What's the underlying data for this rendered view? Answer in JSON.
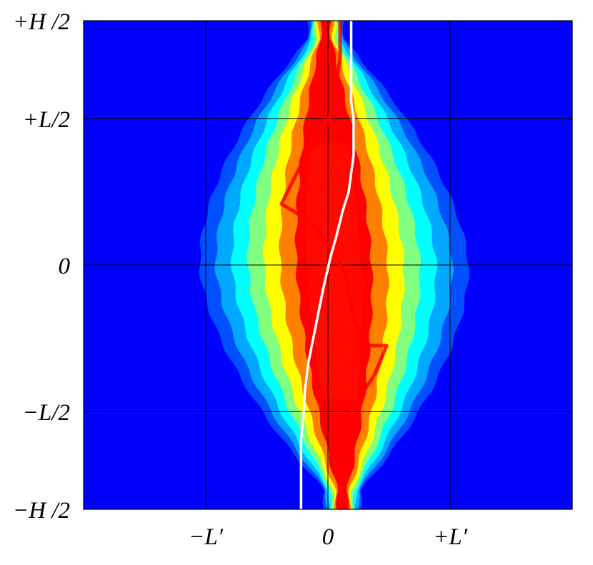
{
  "chart_data": {
    "type": "heatmap",
    "title": "",
    "xlabel": "",
    "ylabel": "",
    "colormap": [
      "#0000ff",
      "#0050ff",
      "#00a8ff",
      "#00ffff",
      "#80ff80",
      "#ffff00",
      "#ff8000",
      "#ff0000"
    ],
    "background_color": "#0000ff",
    "grid": true,
    "xlim": [
      -2,
      2
    ],
    "ylim": [
      -1,
      1
    ],
    "x_ticks": [
      {
        "value": -1,
        "label": "−L′"
      },
      {
        "value": 0,
        "label": "0"
      },
      {
        "value": 1,
        "label": "+L′"
      }
    ],
    "y_ticks": [
      {
        "value": 1,
        "label": "+H /2"
      },
      {
        "value": 0.6,
        "label": "+L/2"
      },
      {
        "value": 0,
        "label": "0"
      },
      {
        "value": -0.6,
        "label": "−L/2"
      },
      {
        "value": -1,
        "label": "−H /2"
      }
    ],
    "ridge_line": {
      "color": "#ff0000",
      "points": [
        [
          0.1,
          1.0
        ],
        [
          0.1,
          0.85
        ],
        [
          0.05,
          0.68
        ],
        [
          0.0,
          0.58
        ],
        [
          -0.2,
          0.43
        ],
        [
          -0.38,
          0.25
        ],
        [
          -0.15,
          0.18
        ],
        [
          0.05,
          0.05
        ],
        [
          0.15,
          -0.05
        ],
        [
          0.2,
          -0.2
        ],
        [
          0.3,
          -0.33
        ],
        [
          0.48,
          -0.33
        ],
        [
          0.38,
          -0.45
        ],
        [
          0.25,
          -0.55
        ],
        [
          0.1,
          -0.68
        ],
        [
          0.1,
          -0.82
        ],
        [
          0.1,
          -1.0
        ]
      ]
    },
    "mean_profile": {
      "color": "#ffffff",
      "points": [
        [
          0.19,
          1.0
        ],
        [
          0.19,
          0.67
        ],
        [
          0.21,
          0.6
        ],
        [
          0.21,
          0.45
        ],
        [
          0.17,
          0.3
        ],
        [
          0.12,
          0.22
        ],
        [
          0.07,
          0.12
        ],
        [
          0.02,
          0.03
        ],
        [
          -0.04,
          -0.1
        ],
        [
          -0.1,
          -0.25
        ],
        [
          -0.16,
          -0.4
        ],
        [
          -0.19,
          -0.52
        ],
        [
          -0.2,
          -0.62
        ],
        [
          -0.22,
          -0.72
        ],
        [
          -0.22,
          -1.0
        ]
      ]
    }
  }
}
